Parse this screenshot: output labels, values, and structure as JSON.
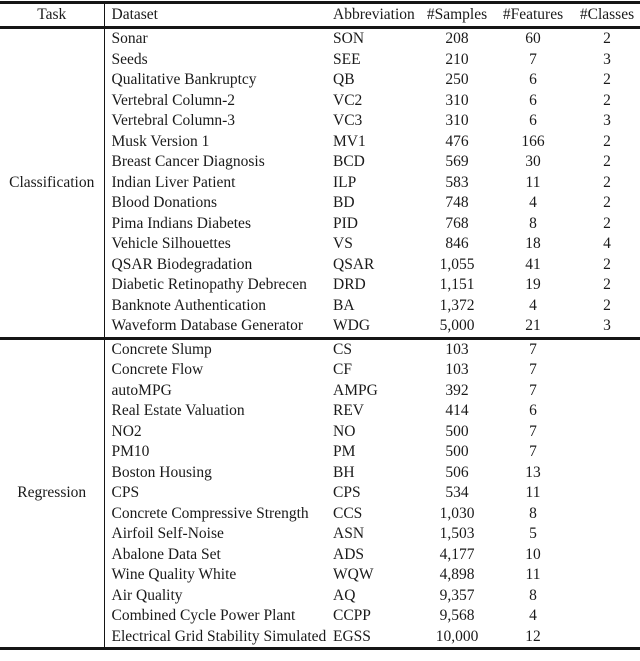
{
  "colors": {
    "text": "#1a1a1a",
    "rule": "#151515",
    "background": "#ffffff"
  },
  "table": {
    "headers": [
      "Task",
      "Dataset",
      "Abbreviation",
      "#Samples",
      "#Features",
      "#Classes"
    ],
    "sections": [
      {
        "task": "Classification",
        "rows": [
          {
            "dataset": "Sonar",
            "abbreviation": "SON",
            "samples": "208",
            "features": "60",
            "classes": "2"
          },
          {
            "dataset": "Seeds",
            "abbreviation": "SEE",
            "samples": "210",
            "features": "7",
            "classes": "3"
          },
          {
            "dataset": "Qualitative Bankruptcy",
            "abbreviation": "QB",
            "samples": "250",
            "features": "6",
            "classes": "2"
          },
          {
            "dataset": "Vertebral Column-2",
            "abbreviation": "VC2",
            "samples": "310",
            "features": "6",
            "classes": "2"
          },
          {
            "dataset": "Vertebral Column-3",
            "abbreviation": "VC3",
            "samples": "310",
            "features": "6",
            "classes": "3"
          },
          {
            "dataset": "Musk Version 1",
            "abbreviation": "MV1",
            "samples": "476",
            "features": "166",
            "classes": "2"
          },
          {
            "dataset": "Breast Cancer Diagnosis",
            "abbreviation": "BCD",
            "samples": "569",
            "features": "30",
            "classes": "2"
          },
          {
            "dataset": "Indian Liver Patient",
            "abbreviation": "ILP",
            "samples": "583",
            "features": "11",
            "classes": "2"
          },
          {
            "dataset": "Blood Donations",
            "abbreviation": "BD",
            "samples": "748",
            "features": "4",
            "classes": "2"
          },
          {
            "dataset": "Pima Indians Diabetes",
            "abbreviation": "PID",
            "samples": "768",
            "features": "8",
            "classes": "2"
          },
          {
            "dataset": "Vehicle Silhouettes",
            "abbreviation": "VS",
            "samples": "846",
            "features": "18",
            "classes": "4"
          },
          {
            "dataset": "QSAR Biodegradation",
            "abbreviation": "QSAR",
            "samples": "1,055",
            "features": "41",
            "classes": "2"
          },
          {
            "dataset": "Diabetic Retinopathy Debrecen",
            "abbreviation": "DRD",
            "samples": "1,151",
            "features": "19",
            "classes": "2"
          },
          {
            "dataset": "Banknote Authentication",
            "abbreviation": "BA",
            "samples": "1,372",
            "features": "4",
            "classes": "2"
          },
          {
            "dataset": "Waveform Database Generator",
            "abbreviation": "WDG",
            "samples": "5,000",
            "features": "21",
            "classes": "3"
          }
        ]
      },
      {
        "task": "Regression",
        "rows": [
          {
            "dataset": "Concrete Slump",
            "abbreviation": "CS",
            "samples": "103",
            "features": "7",
            "classes": ""
          },
          {
            "dataset": "Concrete Flow",
            "abbreviation": "CF",
            "samples": "103",
            "features": "7",
            "classes": ""
          },
          {
            "dataset": "autoMPG",
            "abbreviation": "AMPG",
            "samples": "392",
            "features": "7",
            "classes": ""
          },
          {
            "dataset": "Real Estate Valuation",
            "abbreviation": "REV",
            "samples": "414",
            "features": "6",
            "classes": ""
          },
          {
            "dataset": "NO2",
            "abbreviation": "NO",
            "samples": "500",
            "features": "7",
            "classes": ""
          },
          {
            "dataset": "PM10",
            "abbreviation": "PM",
            "samples": "500",
            "features": "7",
            "classes": ""
          },
          {
            "dataset": "Boston Housing",
            "abbreviation": "BH",
            "samples": "506",
            "features": "13",
            "classes": ""
          },
          {
            "dataset": "CPS",
            "abbreviation": "CPS",
            "samples": "534",
            "features": "11",
            "classes": ""
          },
          {
            "dataset": "Concrete Compressive Strength",
            "abbreviation": "CCS",
            "samples": "1,030",
            "features": "8",
            "classes": ""
          },
          {
            "dataset": "Airfoil Self-Noise",
            "abbreviation": "ASN",
            "samples": "1,503",
            "features": "5",
            "classes": ""
          },
          {
            "dataset": "Abalone Data Set",
            "abbreviation": "ADS",
            "samples": "4,177",
            "features": "10",
            "classes": ""
          },
          {
            "dataset": "Wine Quality White",
            "abbreviation": "WQW",
            "samples": "4,898",
            "features": "11",
            "classes": ""
          },
          {
            "dataset": "Air Quality",
            "abbreviation": "AQ",
            "samples": "9,357",
            "features": "8",
            "classes": ""
          },
          {
            "dataset": "Combined Cycle Power Plant",
            "abbreviation": "CCPP",
            "samples": "9,568",
            "features": "4",
            "classes": ""
          },
          {
            "dataset": "Electrical Grid Stability Simulated",
            "abbreviation": "EGSS",
            "samples": "10,000",
            "features": "12",
            "classes": ""
          }
        ]
      }
    ]
  }
}
